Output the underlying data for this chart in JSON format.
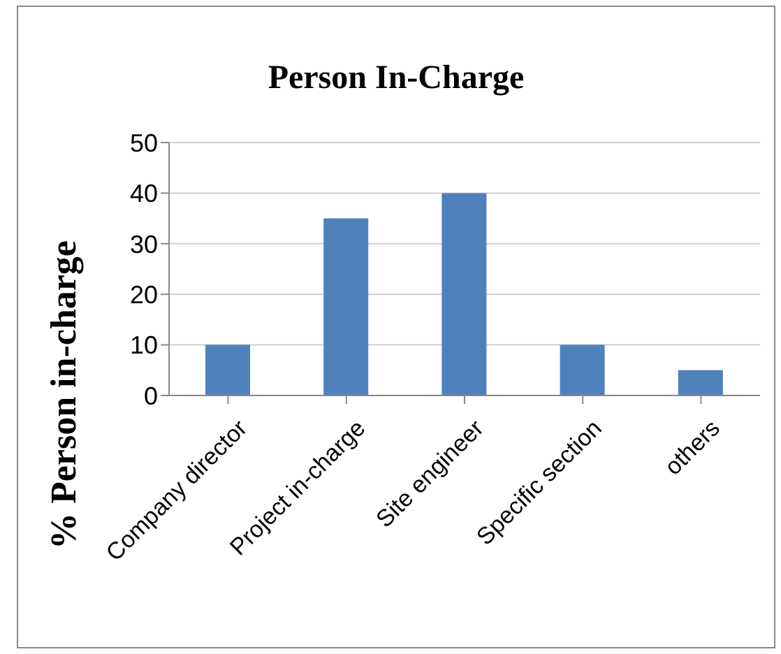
{
  "chart_data": {
    "type": "bar",
    "title": "Person In-Charge",
    "ylabel": "% Person in-charge",
    "categories": [
      "Company director",
      "Project in-charge",
      "Site engineer",
      "Specific section",
      "others"
    ],
    "values": [
      10,
      35,
      40,
      10,
      5
    ],
    "color": "#4f81bd",
    "ylim": [
      0,
      50
    ],
    "yticks": [
      0,
      10,
      20,
      30,
      40,
      50
    ],
    "grid": "y",
    "legend": false
  }
}
